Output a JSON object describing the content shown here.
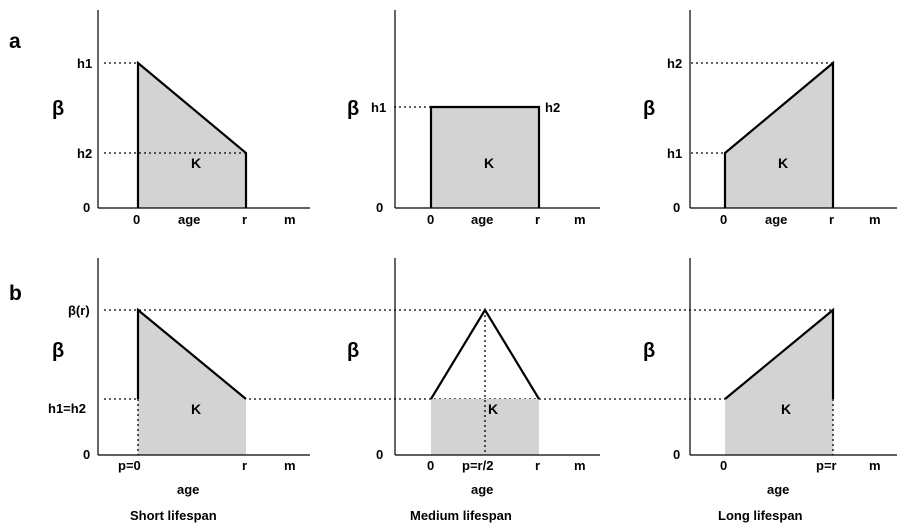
{
  "panel_labels": {
    "a": "a",
    "b": "b"
  },
  "beta_symbol": "β",
  "row_a": {
    "short": {
      "y_top": "h1",
      "y_mid": "h2",
      "y_zero": "0",
      "x0": "0",
      "x_label": "age",
      "xr": "r",
      "xm": "m",
      "area": "K"
    },
    "medium": {
      "y_left": "h1",
      "y_right": "h2",
      "y_zero": "0",
      "x0": "0",
      "x_label": "age",
      "xr": "r",
      "xm": "m",
      "area": "K"
    },
    "long": {
      "y_top": "h2",
      "y_mid": "h1",
      "y_zero": "0",
      "x0": "0",
      "x_label": "age",
      "xr": "r",
      "xm": "m",
      "area": "K"
    }
  },
  "row_b": {
    "short": {
      "y_top": "β(r)",
      "y_mid": "h1=h2",
      "y_zero": "0",
      "x_peak": "p=0",
      "xr": "r",
      "xm": "m",
      "x_label": "age",
      "area": "K",
      "caption": "Short lifespan"
    },
    "medium": {
      "y_zero": "0",
      "x0": "0",
      "x_peak": "p=r/2",
      "xr": "r",
      "xm": "m",
      "x_label": "age",
      "area": "K",
      "caption": "Medium lifespan"
    },
    "long": {
      "y_zero": "0",
      "x0": "0",
      "x_peak": "p=r",
      "xm": "m",
      "x_label": "age",
      "area": "K",
      "caption": "Long lifespan"
    }
  }
}
